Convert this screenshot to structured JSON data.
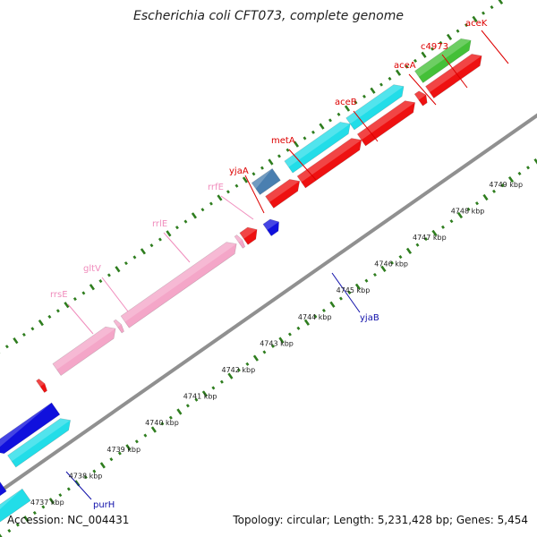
{
  "title": "Escherichia coli CFT073, complete genome",
  "footer": {
    "accession": "Accession: NC_004431",
    "summary": "Topology: circular; Length: 5,231,428 bp; Genes: 5,454"
  },
  "colors": {
    "backbone": "#909090",
    "tick_outer": "#2e7d1e",
    "tick_inner": "#2e7d1e",
    "rrna": "#f4a6c8",
    "cds_red": "#ee1111",
    "cds_cyan": "#22dde8",
    "cds_blue": "#1010dd",
    "cds_steel": "#4a7fb0",
    "cds_green": "#44c038",
    "label_red": "#dd0000",
    "label_pink": "#f08cbc",
    "label_blue": "#1010aa"
  },
  "kbp_labels": [
    "4737 kbp",
    "4738 kbp",
    "4739 kbp",
    "4740 kbp",
    "4741 kbp",
    "4742 kbp",
    "4743 kbp",
    "4744 kbp",
    "4745 kbp",
    "4746 kbp",
    "4747 kbp",
    "4748 kbp",
    "4749 kbp"
  ],
  "gene_labels": [
    {
      "name": "rrsE",
      "color": "label_pink"
    },
    {
      "name": "gltV",
      "color": "label_pink"
    },
    {
      "name": "rrlE",
      "color": "label_pink"
    },
    {
      "name": "rrfE",
      "color": "label_pink"
    },
    {
      "name": "yjaA",
      "color": "label_red"
    },
    {
      "name": "metA",
      "color": "label_red"
    },
    {
      "name": "aceB",
      "color": "label_red"
    },
    {
      "name": "aceA",
      "color": "label_red"
    },
    {
      "name": "c4973",
      "color": "label_red"
    },
    {
      "name": "aceK",
      "color": "label_red"
    },
    {
      "name": "yjaB",
      "color": "label_blue"
    },
    {
      "name": "purH",
      "color": "label_blue"
    }
  ]
}
